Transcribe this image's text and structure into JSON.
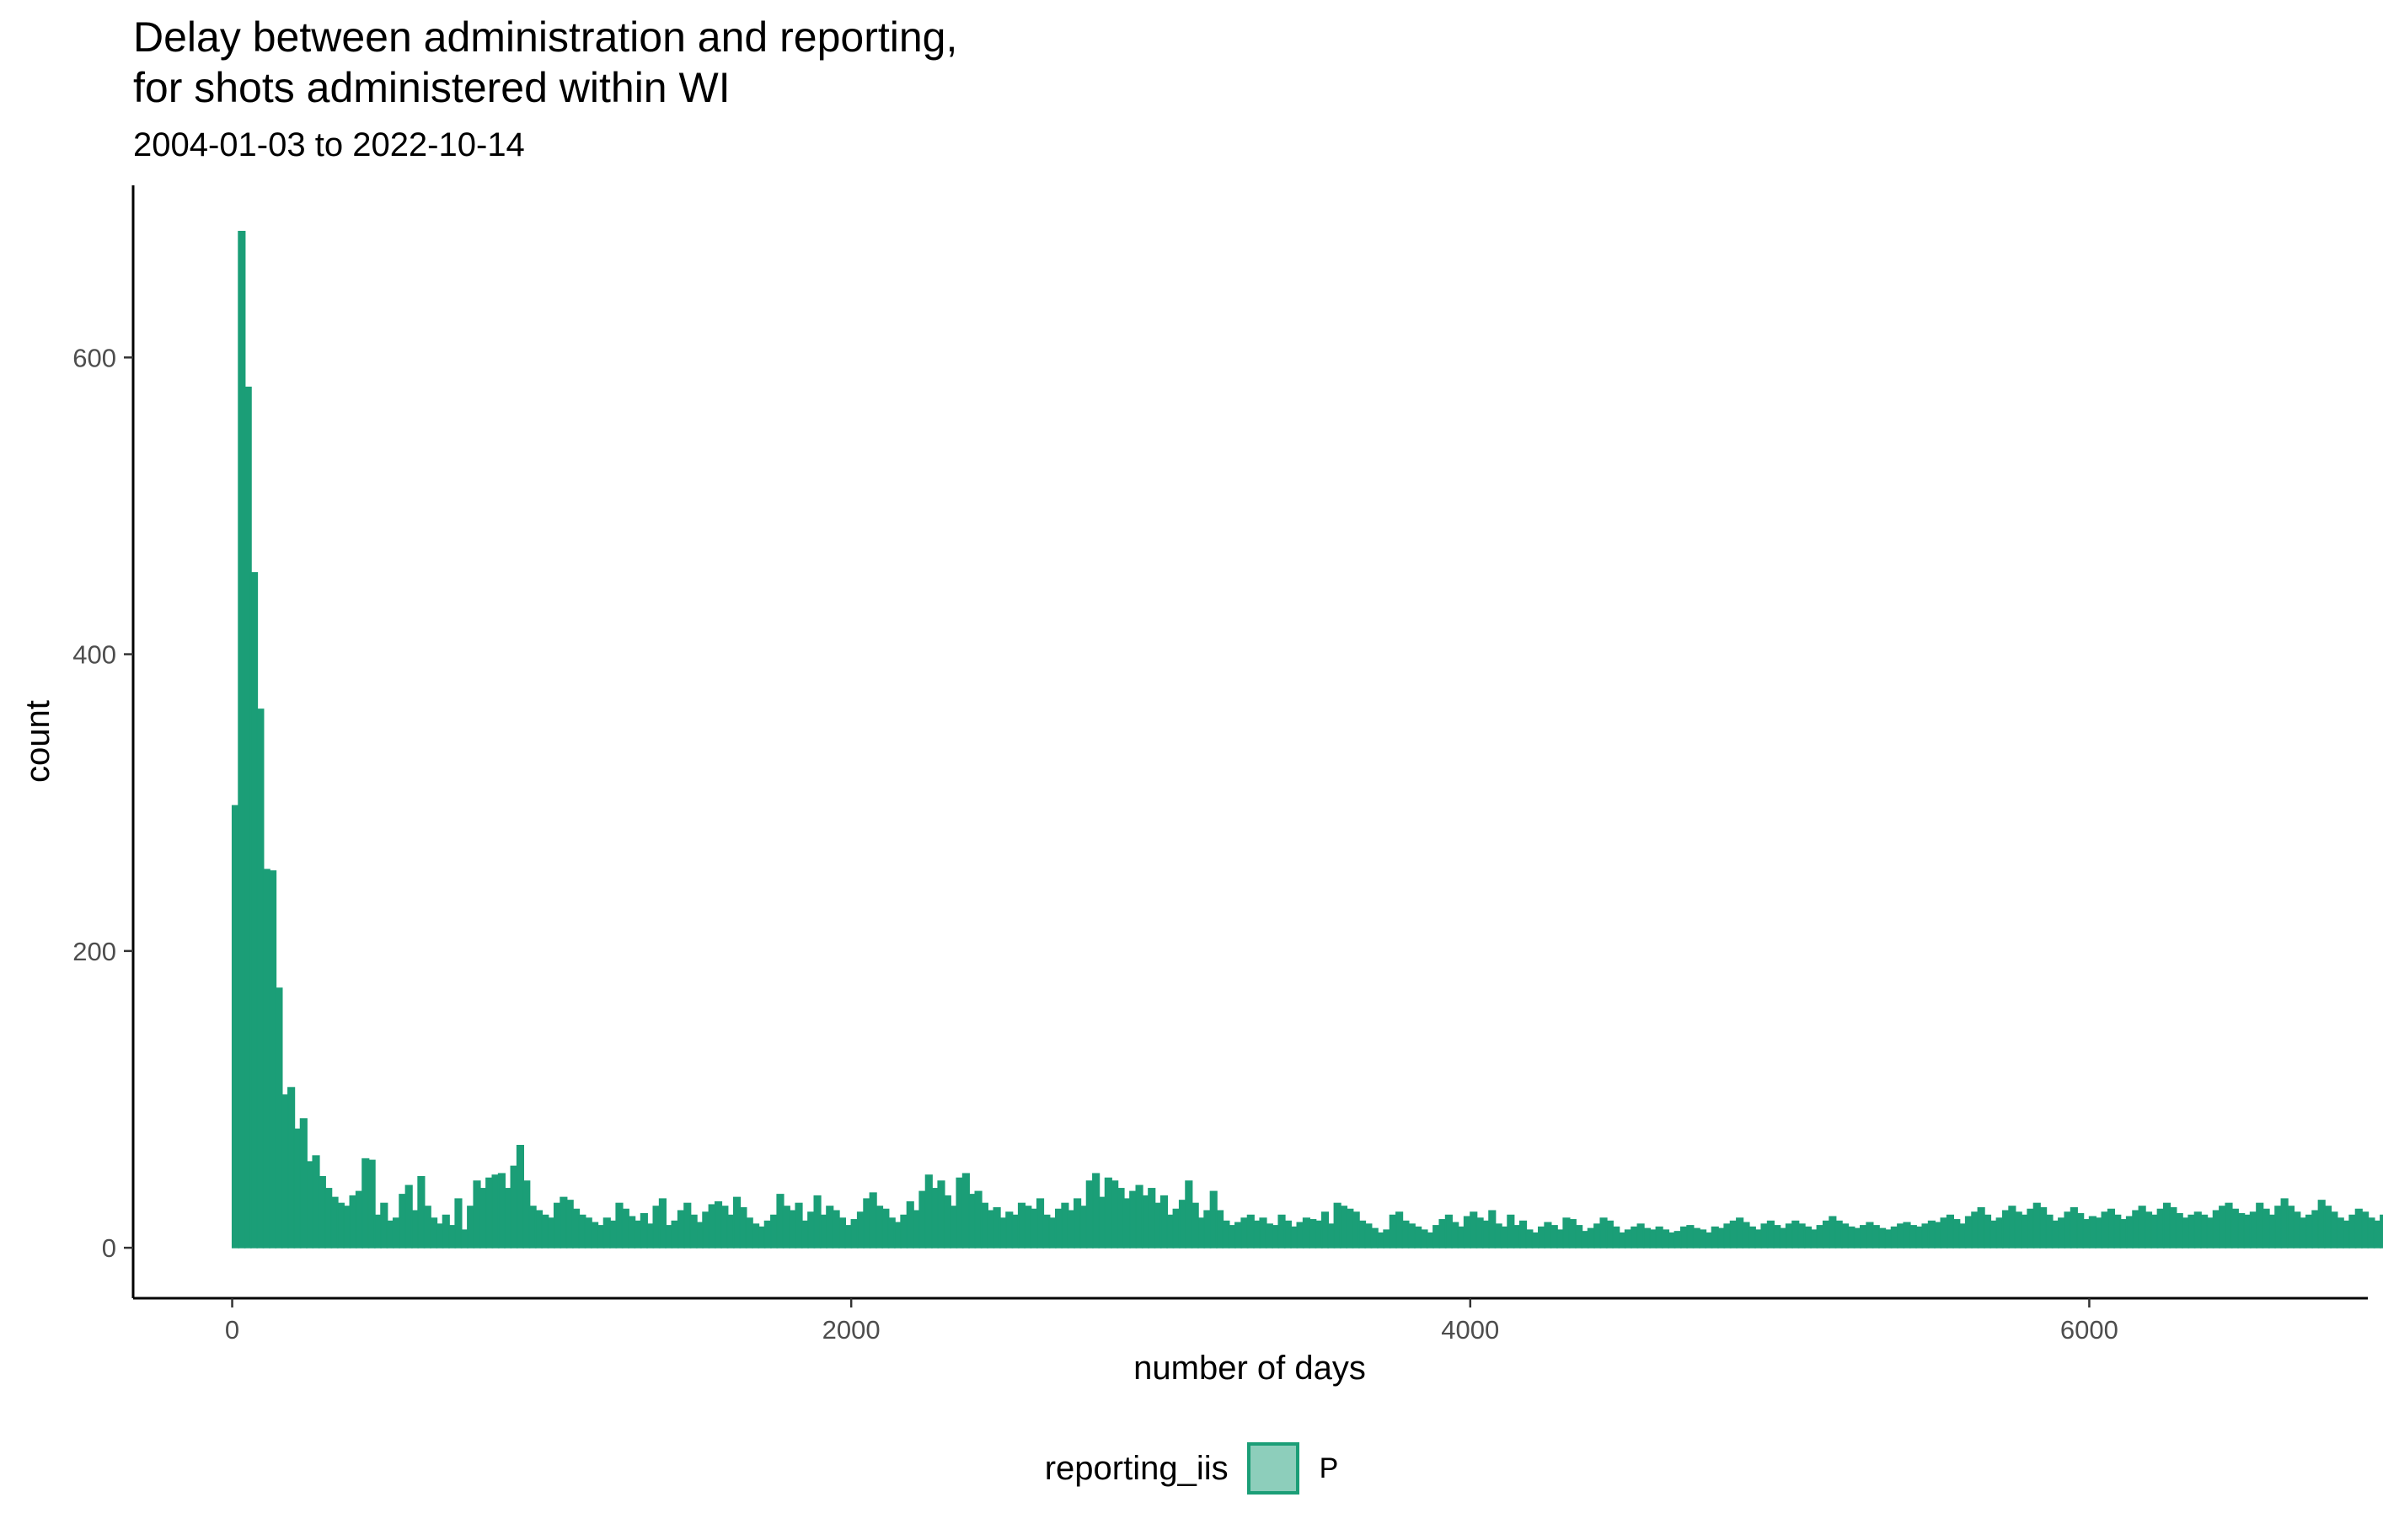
{
  "chart_data": {
    "type": "bar",
    "title": "Delay between administration and reporting,\nfor shots administered within WI",
    "subtitle": "2004-01-03 to 2022-10-14",
    "xlabel": "number of days",
    "ylabel": "count",
    "xlim": [
      -320,
      6900
    ],
    "ylim": [
      -34,
      716
    ],
    "x_ticks": [
      0,
      2000,
      4000,
      6000
    ],
    "x_tick_labels": [
      "0",
      "2000",
      "4000",
      "6000"
    ],
    "y_ticks": [
      0,
      200,
      400,
      600
    ],
    "y_tick_labels": [
      "0",
      "200",
      "400",
      "600"
    ],
    "grid": false,
    "legend": {
      "position": "bottom",
      "title": "reporting_iis",
      "entries": [
        "P"
      ]
    },
    "colors": {
      "fill": "#1b9e77",
      "legend_fill": "#8ed0bb",
      "axis": "#000000",
      "tick_text": "#4d4d4d"
    },
    "bin_start": 0,
    "bin_width": 20,
    "series": [
      {
        "name": "P",
        "values": [
          298,
          685,
          580,
          455,
          363,
          255,
          254,
          175,
          103,
          108,
          80,
          87,
          58,
          62,
          48,
          40,
          34,
          30,
          28,
          35,
          38,
          60,
          59,
          22,
          30,
          18,
          20,
          36,
          42,
          25,
          48,
          28,
          20,
          16,
          22,
          15,
          33,
          12,
          28,
          45,
          40,
          47,
          49,
          50,
          40,
          55,
          69,
          45,
          28,
          25,
          22,
          20,
          30,
          34,
          32,
          26,
          22,
          20,
          17,
          15,
          20,
          18,
          30,
          26,
          21,
          18,
          23,
          16,
          28,
          33,
          15,
          18,
          25,
          30,
          22,
          17,
          24,
          29,
          31,
          28,
          22,
          34,
          27,
          20,
          16,
          14,
          18,
          22,
          36,
          28,
          25,
          30,
          18,
          24,
          35,
          22,
          28,
          25,
          20,
          15,
          19,
          24,
          33,
          37,
          28,
          26,
          20,
          17,
          22,
          31,
          25,
          38,
          49,
          40,
          45,
          35,
          28,
          47,
          50,
          36,
          38,
          30,
          25,
          27,
          20,
          24,
          22,
          30,
          28,
          26,
          33,
          22,
          20,
          26,
          30,
          25,
          33,
          28,
          45,
          50,
          34,
          47,
          45,
          40,
          33,
          38,
          42,
          35,
          40,
          30,
          35,
          22,
          26,
          32,
          45,
          30,
          20,
          25,
          38,
          25,
          18,
          15,
          17,
          20,
          22,
          18,
          20,
          16,
          15,
          22,
          18,
          14,
          17,
          20,
          19,
          18,
          24,
          16,
          30,
          28,
          26,
          24,
          18,
          16,
          13,
          10,
          12,
          22,
          24,
          18,
          16,
          14,
          12,
          10,
          15,
          19,
          22,
          17,
          14,
          21,
          24,
          20,
          18,
          25,
          16,
          14,
          22,
          15,
          18,
          12,
          10,
          14,
          17,
          15,
          12,
          20,
          19,
          15,
          11,
          13,
          16,
          20,
          18,
          14,
          10,
          12,
          14,
          16,
          13,
          12,
          14,
          12,
          10,
          11,
          14,
          15,
          13,
          12,
          10,
          14,
          13,
          16,
          18,
          20,
          17,
          14,
          12,
          16,
          18,
          15,
          13,
          16,
          18,
          16,
          14,
          12,
          15,
          18,
          21,
          18,
          16,
          14,
          13,
          15,
          17,
          15,
          13,
          12,
          14,
          16,
          17,
          15,
          14,
          16,
          18,
          17,
          20,
          22,
          19,
          16,
          21,
          24,
          27,
          22,
          18,
          20,
          25,
          28,
          24,
          22,
          26,
          30,
          27,
          22,
          18,
          20,
          24,
          27,
          23,
          19,
          21,
          20,
          24,
          26,
          22,
          19,
          21,
          25,
          28,
          24,
          22,
          26,
          30,
          27,
          23,
          20,
          22,
          24,
          22,
          20,
          25,
          28,
          30,
          26,
          23,
          22,
          24,
          30,
          26,
          22,
          28,
          33,
          28,
          24,
          20,
          22,
          25,
          32,
          28,
          24,
          20,
          18,
          22,
          26,
          24,
          20,
          18,
          22,
          20,
          17,
          19,
          22,
          24,
          20,
          16,
          18,
          21,
          24,
          20,
          17,
          15,
          17,
          19,
          22,
          18,
          16,
          14,
          15,
          17,
          19,
          17,
          15,
          14,
          16,
          18,
          15,
          13,
          14,
          16,
          18,
          16,
          14,
          13,
          15,
          17,
          16,
          14,
          13,
          15,
          18,
          16,
          14,
          12,
          14,
          17,
          15,
          13,
          12,
          15,
          17,
          16,
          14,
          13,
          15,
          18,
          17,
          15,
          14,
          16,
          19,
          20,
          18,
          16,
          15,
          18,
          21,
          20,
          18,
          16,
          17,
          20,
          24,
          22,
          19,
          18,
          20,
          22,
          30,
          26,
          22,
          20,
          24,
          28,
          25,
          22,
          20,
          18,
          21,
          25,
          22,
          19,
          17,
          19,
          22,
          24,
          22,
          18,
          16,
          19,
          22,
          20,
          18,
          16,
          15,
          17,
          20,
          18,
          16,
          14,
          16,
          18,
          19,
          17,
          15,
          13,
          14,
          16,
          15,
          12,
          11,
          12,
          14,
          12,
          10,
          9,
          10,
          11,
          10,
          8,
          9,
          10,
          9,
          8,
          7,
          8,
          8,
          7,
          6,
          6,
          7,
          6,
          5,
          6,
          5,
          4,
          4,
          5,
          4,
          3,
          4,
          3,
          2,
          3,
          2,
          2,
          2,
          1,
          2,
          1,
          1,
          1,
          1,
          1,
          2,
          1,
          1
        ]
      }
    ]
  }
}
